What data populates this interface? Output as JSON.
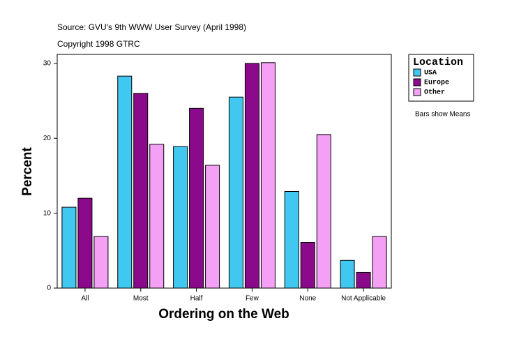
{
  "chart_data": {
    "type": "bar",
    "title": "Source: GVU's 9th WWW User Survey (April 1998)",
    "subtitle": "Copyright 1998 GTRC",
    "x_label": "Ordering on the Web",
    "y_label": "Percent",
    "legend_title": "Location",
    "note": "Bars show Means",
    "categories": [
      "All",
      "Most",
      "Half",
      "Few",
      "None",
      "Not Applicable"
    ],
    "series": [
      {
        "name": "USA",
        "color": "#40c8f0",
        "values": [
          10.8,
          28.3,
          18.9,
          25.5,
          12.9,
          3.7
        ]
      },
      {
        "name": "Europe",
        "color": "#8b0a8b",
        "values": [
          12.0,
          26.0,
          24.0,
          30.0,
          6.1,
          2.1
        ]
      },
      {
        "name": "Other",
        "color": "#f4a0f4",
        "values": [
          6.9,
          19.2,
          16.4,
          30.1,
          20.5,
          6.9
        ]
      }
    ],
    "ylim": [
      0,
      31.2
    ],
    "yticks": [
      0,
      10,
      20,
      30
    ],
    "grid": false,
    "legend": "right"
  }
}
